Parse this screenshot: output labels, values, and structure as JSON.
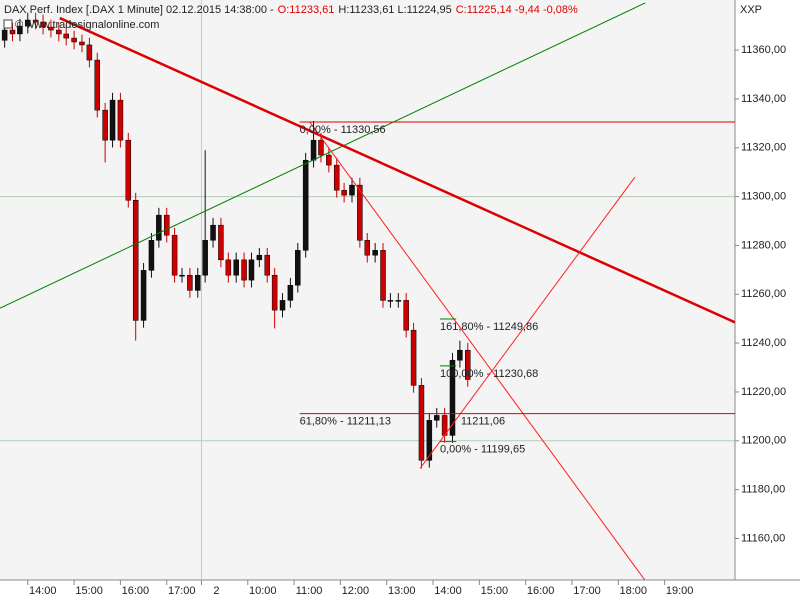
{
  "chart_data": {
    "type": "candlestick",
    "title_parts": [
      {
        "text": "DAX Perf. Index [.DAX  1 Minute] 02.12.2015 14:38:00 -",
        "color": "#222222"
      },
      {
        "text": "O:11233,61",
        "color": "#dd0000"
      },
      {
        "text": "H:11233,61 L:11224,95",
        "color": "#222222"
      },
      {
        "text": "C:11225,14 -9,44 -0,08%",
        "color": "#dd0000"
      }
    ],
    "copyright": "© www.tradesignalonline.com",
    "axis_label": "XXP",
    "up_color": "#111111",
    "down_color": "#cc0000",
    "xlim": [
      -0.6,
      15.27
    ],
    "ylim": [
      11143,
      11380.5
    ],
    "xticks": [
      {
        "value": 0,
        "label": "14:00"
      },
      {
        "value": 1,
        "label": "15:00"
      },
      {
        "value": 2,
        "label": "16:00"
      },
      {
        "value": 3,
        "label": "17:00"
      },
      {
        "value": 3.75,
        "label": "2"
      },
      {
        "value": 4.75,
        "label": "10:00"
      },
      {
        "value": 5.75,
        "label": "11:00"
      },
      {
        "value": 6.75,
        "label": "12:00"
      },
      {
        "value": 7.75,
        "label": "13:00"
      },
      {
        "value": 8.75,
        "label": "14:00"
      },
      {
        "value": 9.75,
        "label": "15:00"
      },
      {
        "value": 10.75,
        "label": "16:00"
      },
      {
        "value": 11.75,
        "label": "17:00"
      },
      {
        "value": 12.75,
        "label": "18:00"
      },
      {
        "value": 13.75,
        "label": "19:00"
      }
    ],
    "session_break": 3.75,
    "yticks": [
      {
        "value": 11160,
        "label": "11160,00"
      },
      {
        "value": 11180,
        "label": "11180,00"
      },
      {
        "value": 11200,
        "label": "11200,00"
      },
      {
        "value": 11220,
        "label": "11220,00"
      },
      {
        "value": 11240,
        "label": "11240,00"
      },
      {
        "value": 11260,
        "label": "11260,00"
      },
      {
        "value": 11280,
        "label": "11280,00"
      },
      {
        "value": 11300,
        "label": "11300,00"
      },
      {
        "value": 11320,
        "label": "11320,00"
      },
      {
        "value": 11340,
        "label": "11340,00"
      },
      {
        "value": 11360,
        "label": "11360,00"
      }
    ],
    "x": [
      -0.5,
      -0.33,
      -0.17,
      0,
      0.17,
      0.33,
      0.5,
      0.67,
      0.83,
      1,
      1.17,
      1.33,
      1.5,
      1.67,
      1.83,
      2,
      2.17,
      2.33,
      2.5,
      2.67,
      2.83,
      3,
      3.17,
      3.33,
      3.5,
      3.67,
      3.83,
      4,
      4.17,
      4.33,
      4.5,
      4.67,
      4.83,
      5,
      5.17,
      5.33,
      5.5,
      5.67,
      5.83,
      6,
      6.17,
      6.33,
      6.5,
      6.67,
      6.83,
      7,
      7.17,
      7.33,
      7.5,
      7.67,
      7.83,
      8,
      8.17,
      8.33,
      8.5,
      8.67,
      8.83,
      9,
      9.17,
      9.33,
      9.5
    ],
    "open": [
      11364.0,
      11368.2,
      11366.6,
      11369.8,
      11372.3,
      11371.5,
      11369.4,
      11368.2,
      11366.6,
      11364.9,
      11363.3,
      11362.1,
      11355.9,
      11335.4,
      11323.1,
      11339.5,
      11323.1,
      11298.5,
      11249.3,
      11269.8,
      11282.1,
      11292.4,
      11284.2,
      11267.8,
      11267.8,
      11261.6,
      11267.8,
      11282.1,
      11288.3,
      11274.1,
      11267.8,
      11274.1,
      11265.8,
      11274.1,
      11276.0,
      11267.8,
      11253.5,
      11257.5,
      11263.7,
      11278.0,
      11314.9,
      11323.1,
      11317.0,
      11312.9,
      11302.6,
      11300.6,
      11304.7,
      11282.1,
      11276.0,
      11278.0,
      11257.5,
      11257.5,
      11257.5,
      11245.3,
      11222.7,
      11192.0,
      11208.4,
      11210.4,
      11202.2,
      11233.0,
      11237.1
    ],
    "high": [
      11371.2,
      11371.2,
      11372.8,
      11375.3,
      11375.3,
      11374.5,
      11372.4,
      11371.2,
      11369.6,
      11367.9,
      11366.3,
      11365.1,
      11358.9,
      11338.4,
      11342.5,
      11342.5,
      11326.1,
      11301.5,
      11272.8,
      11285.1,
      11295.4,
      11295.4,
      11287.2,
      11270.8,
      11270.8,
      11270.8,
      11319.0,
      11291.3,
      11291.3,
      11277.1,
      11277.1,
      11277.1,
      11277.1,
      11279.0,
      11279.0,
      11270.8,
      11260.5,
      11266.7,
      11281.0,
      11317.9,
      11331.0,
      11326.1,
      11320.0,
      11315.9,
      11305.6,
      11307.7,
      11307.7,
      11285.1,
      11281.0,
      11281.0,
      11260.5,
      11260.5,
      11260.5,
      11248.3,
      11225.7,
      11211.4,
      11213.4,
      11213.4,
      11236.0,
      11241.0,
      11240.1
    ],
    "low": [
      11361.0,
      11363.6,
      11363.6,
      11366.8,
      11368.5,
      11366.4,
      11365.2,
      11363.6,
      11361.9,
      11360.3,
      11359.1,
      11352.9,
      11332.4,
      11314.0,
      11320.1,
      11320.1,
      11295.5,
      11241.0,
      11246.3,
      11266.8,
      11279.1,
      11281.2,
      11264.8,
      11264.8,
      11258.6,
      11258.6,
      11264.8,
      11279.1,
      11271.1,
      11264.8,
      11264.8,
      11262.8,
      11262.8,
      11271.1,
      11264.8,
      11246.0,
      11250.5,
      11254.5,
      11260.7,
      11275.0,
      11311.9,
      11314.0,
      11309.9,
      11299.6,
      11297.6,
      11297.6,
      11279.1,
      11273.0,
      11273.0,
      11254.5,
      11254.5,
      11254.5,
      11242.3,
      11219.7,
      11188.7,
      11189.0,
      11205.4,
      11199.2,
      11199.2,
      11230.0,
      11222.1
    ],
    "close": [
      11368.2,
      11366.6,
      11369.8,
      11372.3,
      11371.5,
      11369.4,
      11368.2,
      11366.6,
      11364.9,
      11363.3,
      11362.1,
      11355.9,
      11335.4,
      11323.1,
      11339.5,
      11323.1,
      11298.5,
      11249.3,
      11269.8,
      11282.1,
      11292.4,
      11284.2,
      11267.8,
      11267.8,
      11261.6,
      11267.8,
      11282.1,
      11288.3,
      11274.1,
      11267.8,
      11274.1,
      11265.8,
      11274.1,
      11276.0,
      11267.8,
      11253.5,
      11257.5,
      11263.7,
      11278.0,
      11314.9,
      11323.1,
      11317.0,
      11312.9,
      11302.6,
      11300.6,
      11304.7,
      11282.1,
      11276.0,
      11278.0,
      11257.5,
      11257.5,
      11257.5,
      11245.3,
      11222.7,
      11192.0,
      11208.4,
      11210.4,
      11202.2,
      11233.0,
      11237.1,
      11225.1
    ],
    "hlines": [
      {
        "value": 11300,
        "color": "#b4ccb4"
      },
      {
        "value": 11200,
        "color": "#b4ccb4"
      }
    ],
    "trendlines": [
      {
        "color": "#008000",
        "width": 1,
        "x": [
          -0.6,
          13.33
        ],
        "y": [
          11254.3,
          11379.3
        ]
      },
      {
        "color": "#dd0000",
        "width": 2.5,
        "x": [
          0.69,
          15.27
        ],
        "y": [
          11373.1,
          11248.5
        ]
      },
      {
        "color": "#ff2020",
        "width": 1,
        "x": [
          6.09,
          13.33
        ],
        "y": [
          11330.5,
          11142.8
        ]
      },
      {
        "color": "#ff2020",
        "width": 1,
        "x": [
          8.47,
          13.11
        ],
        "y": [
          11188.7,
          11308.0
        ]
      }
    ],
    "fib_sets": [
      {
        "color": "#dd0000",
        "x": [
          5.87,
          15.27
        ],
        "levels": [
          {
            "value": 11330.56,
            "label": "0,00% - 11330,56"
          },
          {
            "value": 11211.13,
            "label": "61,80% - 11211,13"
          }
        ]
      },
      {
        "color": "#008000",
        "x": [
          8.9,
          9.25
        ],
        "levels": [
          {
            "value": 11249.86,
            "label": "161,80% - 11249,86"
          },
          {
            "value": 11230.68,
            "label": "100,00% - 11230,68"
          },
          {
            "value": 11199.65,
            "label": "0,00% - 11199,65"
          }
        ]
      }
    ],
    "price_label": {
      "x": 9.35,
      "value": 11211.06,
      "label": "11211,06",
      "color": "#dd0000"
    }
  }
}
